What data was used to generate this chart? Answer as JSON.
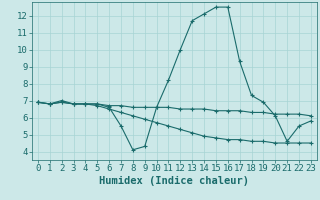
{
  "xlabel": "Humidex (Indice chaleur)",
  "xlim": [
    -0.5,
    23.5
  ],
  "ylim": [
    3.5,
    12.8
  ],
  "yticks": [
    4,
    5,
    6,
    7,
    8,
    9,
    10,
    11,
    12
  ],
  "xticks": [
    0,
    1,
    2,
    3,
    4,
    5,
    6,
    7,
    8,
    9,
    10,
    11,
    12,
    13,
    14,
    15,
    16,
    17,
    18,
    19,
    20,
    21,
    22,
    23
  ],
  "bg_color": "#cce8e8",
  "grid_color": "#a8d4d4",
  "line_color": "#1a6b6b",
  "line1_x": [
    0,
    1,
    2,
    3,
    4,
    5,
    6,
    7,
    8,
    9,
    10,
    11,
    12,
    13,
    14,
    15,
    16,
    17,
    18,
    19,
    20,
    21,
    22,
    23
  ],
  "line1_y": [
    6.9,
    6.8,
    6.9,
    6.8,
    6.8,
    6.8,
    6.7,
    6.7,
    6.6,
    6.6,
    6.6,
    6.6,
    6.5,
    6.5,
    6.5,
    6.4,
    6.4,
    6.4,
    6.3,
    6.3,
    6.2,
    6.2,
    6.2,
    6.1
  ],
  "line2_x": [
    0,
    1,
    2,
    3,
    4,
    5,
    6,
    7,
    8,
    9,
    10,
    11,
    12,
    13,
    14,
    15,
    16,
    17,
    18,
    19,
    20,
    21,
    22,
    23
  ],
  "line2_y": [
    6.9,
    6.8,
    7.0,
    6.8,
    6.8,
    6.8,
    6.6,
    5.5,
    4.1,
    4.3,
    6.6,
    8.2,
    10.0,
    11.7,
    12.1,
    12.5,
    12.5,
    9.3,
    7.3,
    6.9,
    6.1,
    4.6,
    5.5,
    5.8
  ],
  "line3_x": [
    0,
    1,
    2,
    3,
    4,
    5,
    6,
    7,
    8,
    9,
    10,
    11,
    12,
    13,
    14,
    15,
    16,
    17,
    18,
    19,
    20,
    21,
    22,
    23
  ],
  "line3_y": [
    6.9,
    6.8,
    6.9,
    6.8,
    6.8,
    6.7,
    6.5,
    6.3,
    6.1,
    5.9,
    5.7,
    5.5,
    5.3,
    5.1,
    4.9,
    4.8,
    4.7,
    4.7,
    4.6,
    4.6,
    4.5,
    4.5,
    4.5,
    4.5
  ],
  "tick_fontsize": 6.5,
  "label_fontsize": 7.5
}
